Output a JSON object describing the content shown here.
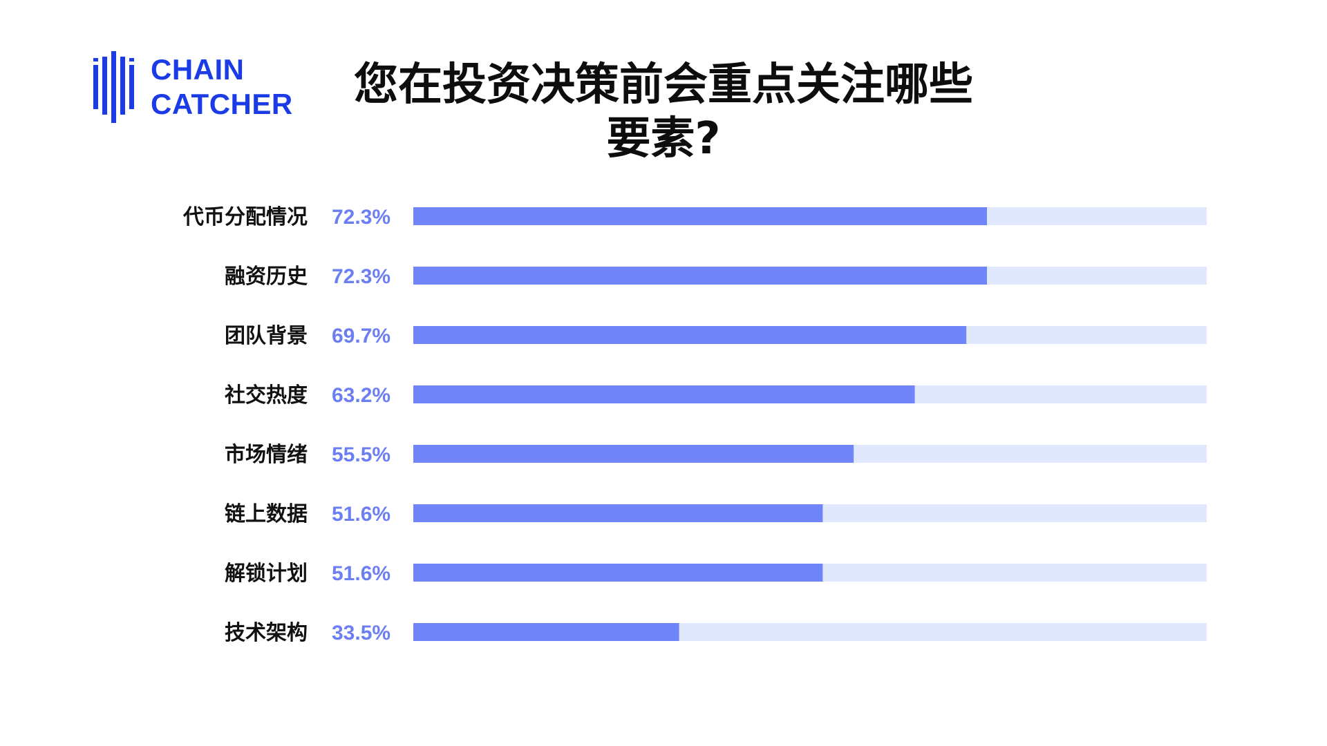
{
  "logo": {
    "line1": "CHAIN",
    "line2": "CATCHER",
    "color": "#1a3be6"
  },
  "title": {
    "line1": "您在投资决策前会重点关注哪些",
    "line2": "要素?"
  },
  "colors": {
    "bar": "#7285f8",
    "track": "#dfe8fc",
    "value_text": "#6b7ff2",
    "label_text": "#111111"
  },
  "chart_data": {
    "type": "bar",
    "orientation": "horizontal",
    "title": "您在投资决策前会重点关注哪些要素?",
    "xlim": [
      0,
      100
    ],
    "categories": [
      "代币分配情况",
      "融资历史",
      "团队背景",
      "社交热度",
      "市场情绪",
      "链上数据",
      "解锁计划",
      "技术架构"
    ],
    "values": [
      72.3,
      72.3,
      69.7,
      63.2,
      55.5,
      51.6,
      51.6,
      33.5
    ],
    "value_labels": [
      "72.3%",
      "72.3%",
      "69.7%",
      "63.2%",
      "55.5%",
      "51.6%",
      "51.6%",
      "33.5%"
    ],
    "grid": false,
    "legend": "none"
  }
}
